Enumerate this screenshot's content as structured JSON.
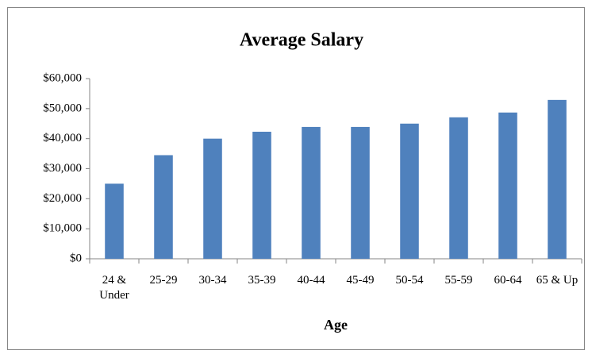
{
  "chart_data": {
    "type": "bar",
    "title": "Average Salary",
    "x_label": "Age",
    "categories": [
      "24 & Under",
      "25-29",
      "30-34",
      "35-39",
      "40-44",
      "45-49",
      "50-54",
      "55-59",
      "60-64",
      "65 & Up"
    ],
    "values": [
      25000,
      34500,
      40000,
      42300,
      43900,
      43900,
      45000,
      47100,
      48700,
      52900
    ],
    "color": "#4f81bd",
    "ylim": [
      0,
      60000
    ],
    "yticks": [
      {
        "value": 0,
        "label": "$0"
      },
      {
        "value": 10000,
        "label": "$10,000"
      },
      {
        "value": 20000,
        "label": "$20,000"
      },
      {
        "value": 30000,
        "label": "$30,000"
      },
      {
        "value": 40000,
        "label": "$40,000"
      },
      {
        "value": 50000,
        "label": "$50,000"
      },
      {
        "value": 60000,
        "label": "$60,000"
      }
    ],
    "grid": false
  }
}
